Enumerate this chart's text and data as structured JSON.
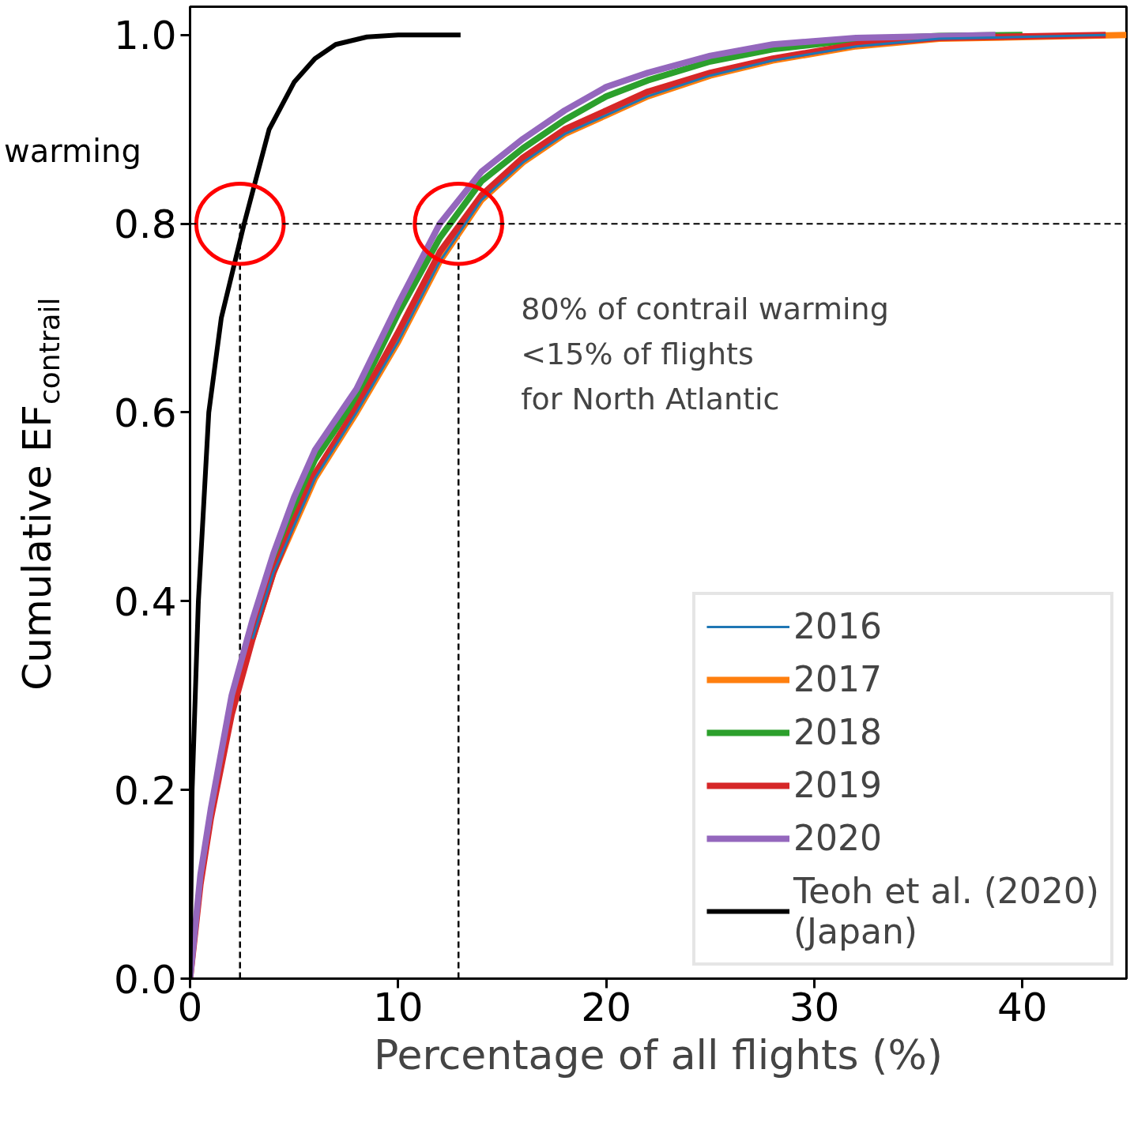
{
  "chart_data": {
    "type": "line",
    "xlabel": "Percentage of all flights (%)",
    "ylabel": "Cumulative EF$_{contrail}$",
    "xlim": [
      0,
      45
    ],
    "ylim": [
      0,
      1.03
    ],
    "xticks": [
      0,
      10,
      20,
      30,
      40
    ],
    "yticks": [
      {
        "value": 0,
        "label": "0.0"
      },
      {
        "value": 0.2,
        "label": "0.2"
      },
      {
        "value": 0.4,
        "label": "0.4"
      },
      {
        "value": 0.6,
        "label": "0.6"
      },
      {
        "value": 0.8,
        "label": "0.8"
      },
      {
        "value": 1.0,
        "label": "1.0"
      }
    ],
    "grid": false,
    "legend": "bottom right",
    "line_style": "solid",
    "series": [
      {
        "name": "2016",
        "color": "#1f77b4",
        "x": [
          3,
          4,
          5,
          6,
          8,
          10,
          12,
          14,
          16,
          18,
          20,
          22,
          25,
          28,
          32,
          36,
          44
        ],
        "values": [
          0.36,
          0.43,
          0.48,
          0.53,
          0.6,
          0.675,
          0.76,
          0.825,
          0.865,
          0.895,
          0.915,
          0.935,
          0.957,
          0.973,
          0.988,
          0.996,
          1.0
        ]
      },
      {
        "name": "2017",
        "color": "#ff7f0e",
        "x": [
          3,
          4,
          5,
          6,
          8,
          10,
          12,
          14,
          16,
          18,
          20,
          22,
          25,
          28,
          32,
          36,
          45
        ],
        "values": [
          0.36,
          0.43,
          0.48,
          0.53,
          0.6,
          0.675,
          0.76,
          0.825,
          0.865,
          0.895,
          0.915,
          0.935,
          0.957,
          0.973,
          0.988,
          0.996,
          1.0
        ]
      },
      {
        "name": "2018",
        "color": "#2ca02c",
        "x": [
          3,
          4,
          5,
          6,
          8,
          10,
          12,
          14,
          16,
          18,
          20,
          22,
          25,
          28,
          32,
          36,
          40
        ],
        "values": [
          0.37,
          0.44,
          0.5,
          0.55,
          0.615,
          0.705,
          0.785,
          0.845,
          0.88,
          0.91,
          0.935,
          0.952,
          0.972,
          0.985,
          0.995,
          0.999,
          1.0
        ]
      },
      {
        "name": "2019",
        "color": "#d62728",
        "x": [
          0,
          0.5,
          1,
          2,
          3,
          4,
          5,
          6,
          8,
          10,
          12,
          14,
          16,
          18,
          20,
          22,
          25,
          28,
          32,
          36,
          44
        ],
        "values": [
          0,
          0.1,
          0.17,
          0.28,
          0.36,
          0.43,
          0.485,
          0.535,
          0.605,
          0.685,
          0.77,
          0.83,
          0.87,
          0.9,
          0.92,
          0.94,
          0.96,
          0.975,
          0.99,
          0.997,
          1.0
        ]
      },
      {
        "name": "2020",
        "color": "#9467bd",
        "x": [
          0,
          0.5,
          1,
          2,
          3,
          4,
          5,
          6,
          8,
          10,
          12,
          14,
          16,
          18,
          20,
          22,
          25,
          28,
          32,
          38.7
        ],
        "values": [
          0,
          0.11,
          0.18,
          0.3,
          0.38,
          0.45,
          0.51,
          0.56,
          0.625,
          0.715,
          0.8,
          0.855,
          0.89,
          0.92,
          0.945,
          0.96,
          0.978,
          0.99,
          0.997,
          1.0
        ]
      },
      {
        "name": "Teoh et al. (2020)\n(Japan)",
        "color": "#000000",
        "x": [
          0,
          0.1,
          0.4,
          0.9,
          1.5,
          2.6,
          3.8,
          5,
          6,
          7,
          8.5,
          10,
          13
        ],
        "values": [
          0,
          0.2,
          0.4,
          0.6,
          0.7,
          0.8,
          0.9,
          0.95,
          0.975,
          0.99,
          0.998,
          1.0,
          1.0
        ]
      }
    ],
    "ref_lines": [
      {
        "axis": "y",
        "value": 0.8,
        "color": "#000000",
        "line_style": "dashed"
      },
      {
        "axis": "x",
        "value": 2.4,
        "color": "#000000",
        "line_style": "dashed"
      },
      {
        "axis": "x",
        "value": 12.9,
        "color": "#000000",
        "line_style": "dashed"
      }
    ],
    "annotations": [
      "warming",
      "80% of contrail warming\n<15% of flights\nfor North Atlantic"
    ]
  }
}
